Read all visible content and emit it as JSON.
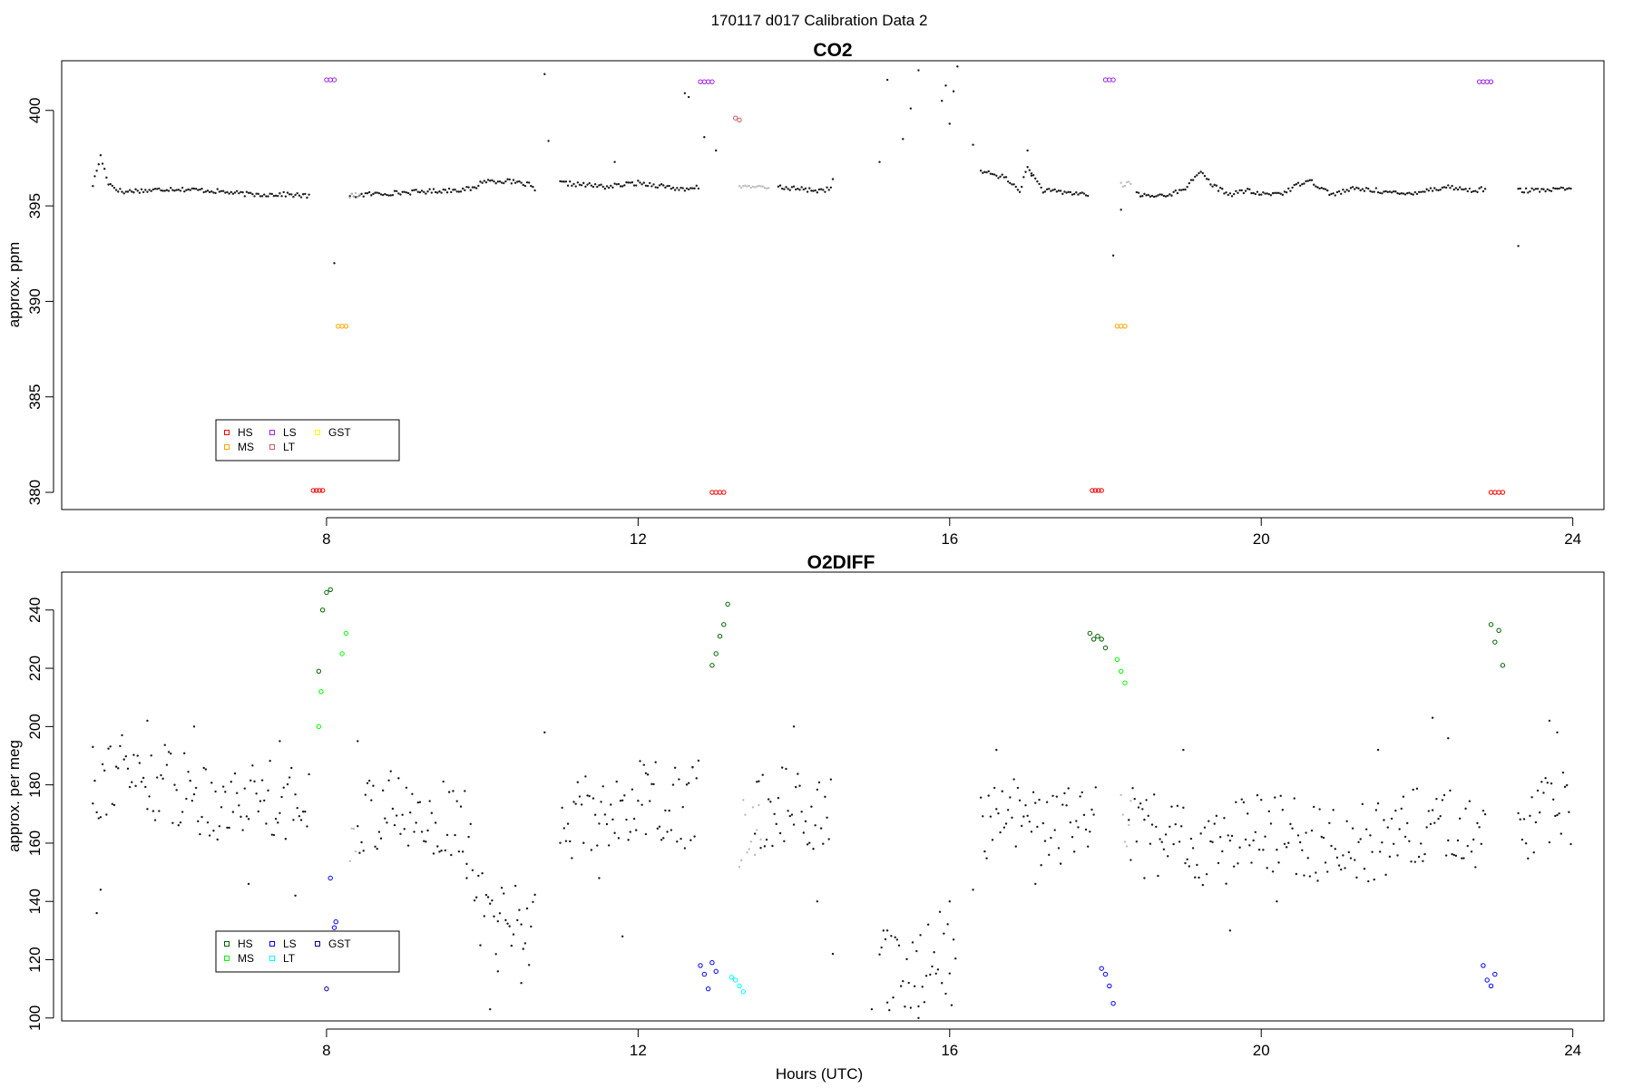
{
  "figure": {
    "suptitle": "170117   d017   Calibration Data 2"
  },
  "chart_data": [
    {
      "type": "scatter",
      "title": "CO2",
      "xlabel": "",
      "ylabel": "approx. ppm",
      "xlim": [
        4.6,
        24.4
      ],
      "ylim": [
        379.1,
        402.6
      ],
      "xticks": [
        8,
        12,
        16,
        20,
        24
      ],
      "yticks": [
        380,
        385,
        390,
        395,
        400
      ],
      "grid": false,
      "legend_position": "bottom-left",
      "legend": [
        {
          "label": "HS",
          "color": "#ff0000"
        },
        {
          "label": "MS",
          "color": "#ffa500"
        },
        {
          "label": "LS",
          "color": "#a020f0"
        },
        {
          "label": "LT",
          "color": "#cd5c5c"
        },
        {
          "label": "GST",
          "color": "#ffff00"
        }
      ],
      "baseline_segments": [
        {
          "x": [
            5.0,
            5.1,
            5.2,
            5.3,
            5.4,
            5.5,
            5.7,
            6.0,
            6.5,
            7.0,
            7.5,
            7.8
          ],
          "y": [
            396.1,
            397.6,
            396.2,
            395.9,
            395.7,
            395.8,
            395.8,
            395.9,
            395.8,
            395.6,
            395.6,
            395.5
          ]
        },
        {
          "x": [
            8.3,
            8.5,
            9.0,
            9.5,
            9.9,
            10.0,
            10.3,
            10.6,
            10.7
          ],
          "y": [
            395.5,
            395.6,
            395.7,
            395.8,
            395.9,
            396.3,
            396.3,
            396.1,
            395.7
          ]
        },
        {
          "x": [
            11.0,
            11.3,
            11.6,
            12.0,
            12.4,
            12.6,
            12.8
          ],
          "y": [
            396.2,
            396.1,
            396.0,
            396.2,
            396.0,
            395.8,
            396.0
          ]
        },
        {
          "x": [
            13.8,
            14.0,
            14.3,
            14.5
          ],
          "y": [
            396.0,
            395.9,
            395.8,
            395.9
          ]
        },
        {
          "x": [
            16.4,
            16.7,
            16.9,
            17.0,
            17.2,
            17.5,
            17.8
          ],
          "y": [
            396.8,
            396.5,
            395.8,
            397.0,
            395.8,
            395.7,
            395.6
          ]
        },
        {
          "x": [
            18.4,
            18.6,
            18.8,
            19.0,
            19.2,
            19.4,
            19.6,
            19.8,
            20.0,
            20.3,
            20.6,
            20.9,
            21.2,
            21.5,
            21.8,
            22.1,
            22.4,
            22.7,
            22.9
          ],
          "y": [
            395.6,
            395.5,
            395.6,
            395.8,
            396.8,
            396.0,
            395.6,
            395.8,
            395.6,
            395.7,
            396.4,
            395.6,
            395.9,
            395.8,
            395.6,
            395.8,
            396.0,
            395.8,
            395.9
          ]
        },
        {
          "x": [
            23.3,
            23.6,
            24.0
          ],
          "y": [
            395.8,
            395.8,
            395.9
          ]
        }
      ],
      "baseline_gray": [
        {
          "x": [
            8.3,
            8.45
          ],
          "y": [
            395.5,
            395.6
          ]
        },
        {
          "x": [
            13.3,
            13.7
          ],
          "y": [
            396.0,
            396.0
          ]
        },
        {
          "x": [
            18.2,
            18.35
          ],
          "y": [
            396.1,
            396.2
          ]
        }
      ],
      "scattered_points": {
        "x": [
          10.8,
          10.85,
          11.7,
          12.6,
          12.65,
          14.5,
          15.1,
          15.2,
          15.4,
          15.5,
          15.6,
          15.9,
          15.95,
          16.0,
          16.05,
          16.1,
          16.3,
          17.0,
          17.05,
          12.85,
          13.0,
          23.3,
          18.1,
          8.1,
          18.2
        ],
        "y": [
          401.9,
          398.4,
          397.3,
          400.9,
          400.7,
          396.4,
          397.3,
          401.6,
          398.5,
          400.1,
          402.1,
          400.5,
          401.3,
          399.3,
          401.0,
          402.3,
          398.2,
          397.9,
          396.7,
          398.6,
          397.9,
          392.9,
          392.4,
          392.0,
          394.8
        ]
      },
      "calibration_markers": [
        {
          "label": "HS",
          "color": "#ff0000",
          "x": [
            7.83,
            7.87,
            7.91,
            7.95
          ],
          "y": [
            380.1,
            380.1,
            380.1,
            380.1
          ]
        },
        {
          "label": "HS",
          "color": "#ff0000",
          "x": [
            12.95,
            13.0,
            13.05,
            13.1
          ],
          "y": [
            380.0,
            380.0,
            380.0,
            380.0
          ]
        },
        {
          "label": "HS",
          "color": "#ff0000",
          "x": [
            17.83,
            17.87,
            17.91,
            17.95
          ],
          "y": [
            380.1,
            380.1,
            380.1,
            380.1
          ]
        },
        {
          "label": "HS",
          "color": "#ff0000",
          "x": [
            22.95,
            23.0,
            23.05,
            23.1
          ],
          "y": [
            380.0,
            380.0,
            380.0,
            380.0
          ]
        },
        {
          "label": "MS",
          "color": "#ffa500",
          "x": [
            8.15,
            8.2,
            8.25
          ],
          "y": [
            388.7,
            388.7,
            388.7
          ]
        },
        {
          "label": "MS",
          "color": "#ffa500",
          "x": [
            18.15,
            18.2,
            18.25
          ],
          "y": [
            388.7,
            388.7,
            388.7
          ]
        },
        {
          "label": "LS",
          "color": "#a020f0",
          "x": [
            8.0,
            8.05,
            8.1
          ],
          "y": [
            401.6,
            401.6,
            401.6
          ]
        },
        {
          "label": "LS",
          "color": "#a020f0",
          "x": [
            12.8,
            12.85,
            12.9,
            12.95
          ],
          "y": [
            401.5,
            401.5,
            401.5,
            401.5
          ]
        },
        {
          "label": "LS",
          "color": "#a020f0",
          "x": [
            18.0,
            18.05,
            18.1
          ],
          "y": [
            401.6,
            401.6,
            401.6
          ]
        },
        {
          "label": "LS",
          "color": "#a020f0",
          "x": [
            22.8,
            22.85,
            22.9,
            22.95
          ],
          "y": [
            401.5,
            401.5,
            401.5,
            401.5
          ]
        },
        {
          "label": "LT",
          "color": "#cd5c5c",
          "x": [
            13.25,
            13.3
          ],
          "y": [
            399.6,
            399.5
          ]
        }
      ]
    },
    {
      "type": "scatter",
      "title": "O2DIFF",
      "xlabel": "Hours (UTC)",
      "ylabel": "approx. per meg",
      "xlim": [
        4.6,
        24.4
      ],
      "ylim": [
        99,
        253
      ],
      "xticks": [
        8,
        12,
        16,
        20,
        24
      ],
      "yticks": [
        100,
        120,
        140,
        160,
        180,
        200,
        220,
        240
      ],
      "grid": false,
      "legend_position": "bottom-left",
      "legend": [
        {
          "label": "HS",
          "color": "#006400"
        },
        {
          "label": "MS",
          "color": "#00ff00"
        },
        {
          "label": "LS",
          "color": "#0000ff"
        },
        {
          "label": "LT",
          "color": "#00ffff"
        },
        {
          "label": "GST",
          "color": "#00008b"
        }
      ],
      "baseline_segments": [
        {
          "x": [
            5.0,
            5.3,
            5.6,
            6.0,
            6.4,
            6.8,
            7.2,
            7.6,
            7.8
          ],
          "y": [
            180,
            186,
            182,
            180,
            176,
            174,
            178,
            172,
            178
          ]
        },
        {
          "x": [
            8.4,
            8.8,
            9.2,
            9.6,
            9.9
          ],
          "y": [
            170,
            172,
            168,
            168,
            162
          ]
        },
        {
          "x": [
            9.9,
            10.2,
            10.5,
            10.7
          ],
          "y": [
            138,
            134,
            136,
            128
          ]
        },
        {
          "x": [
            11.0,
            11.4,
            11.8,
            12.2,
            12.6,
            12.8
          ],
          "y": [
            168,
            170,
            172,
            176,
            170,
            178
          ]
        },
        {
          "x": [
            13.5,
            13.9,
            14.3,
            14.5
          ],
          "y": [
            170,
            174,
            168,
            172
          ]
        },
        {
          "x": [
            15.1,
            15.4,
            15.7,
            15.9,
            16.1
          ],
          "y": [
            118,
            112,
            120,
            124,
            114
          ]
        },
        {
          "x": [
            16.4,
            16.8,
            17.2,
            17.6,
            17.9
          ],
          "y": [
            166,
            170,
            164,
            166,
            170
          ]
        },
        {
          "x": [
            18.3,
            18.7,
            19.1,
            19.5,
            19.9,
            20.3,
            20.7,
            21.1,
            21.5,
            21.9,
            22.3,
            22.7,
            22.9
          ],
          "y": [
            166,
            162,
            160,
            158,
            166,
            162,
            160,
            162,
            160,
            164,
            168,
            164,
            170
          ]
        },
        {
          "x": [
            23.3,
            23.6,
            24.0
          ],
          "y": [
            160,
            168,
            172
          ]
        }
      ],
      "baseline_gray": [
        {
          "x": [
            8.3,
            8.4
          ],
          "y": [
            164,
            168
          ]
        },
        {
          "x": [
            13.3,
            13.6
          ],
          "y": [
            164,
            172
          ]
        },
        {
          "x": [
            18.2,
            18.35
          ],
          "y": [
            166,
            170
          ]
        }
      ],
      "scattered_points": {
        "x": [
          5.0,
          5.05,
          5.1,
          5.7,
          6.3,
          7.0,
          7.4,
          7.6,
          8.4,
          9.8,
          10.1,
          10.2,
          10.5,
          10.8,
          11.5,
          11.8,
          12.1,
          12.7,
          14.0,
          14.3,
          14.5,
          15.0,
          15.2,
          15.6,
          16.0,
          16.3,
          16.6,
          17.1,
          18.5,
          19.0,
          19.6,
          20.2,
          21.5,
          22.2,
          22.4,
          23.7,
          23.8
        ],
        "y": [
          193,
          136,
          144,
          202,
          200,
          146,
          195,
          142,
          195,
          148,
          103,
          116,
          112,
          198,
          148,
          128,
          184,
          186,
          200,
          140,
          122,
          103,
          130,
          100,
          140,
          144,
          192,
          146,
          148,
          192,
          130,
          140,
          192,
          203,
          196,
          202,
          198
        ]
      },
      "calibration_markers": [
        {
          "label": "HS",
          "color": "#006400",
          "x": [
            7.9,
            7.95,
            8.0,
            8.05
          ],
          "y": [
            219,
            240,
            246,
            247
          ]
        },
        {
          "label": "HS",
          "color": "#006400",
          "x": [
            12.95,
            13.0,
            13.05,
            13.1,
            13.15
          ],
          "y": [
            221,
            225,
            231,
            235,
            242
          ]
        },
        {
          "label": "HS",
          "color": "#006400",
          "x": [
            17.8,
            17.85,
            17.9,
            17.95,
            18.0
          ],
          "y": [
            232,
            230,
            231,
            230,
            227
          ]
        },
        {
          "label": "HS",
          "color": "#006400",
          "x": [
            22.95,
            23.0,
            23.05,
            23.1
          ],
          "y": [
            235,
            229,
            233,
            221
          ]
        },
        {
          "label": "MS",
          "color": "#00ff00",
          "x": [
            7.9,
            7.93,
            8.2,
            8.25
          ],
          "y": [
            200,
            212,
            225,
            232
          ]
        },
        {
          "label": "MS",
          "color": "#00ff00",
          "x": [
            18.15,
            18.2,
            18.25
          ],
          "y": [
            223,
            219,
            215
          ]
        },
        {
          "label": "LS",
          "color": "#0000ff",
          "x": [
            8.05,
            8.1,
            8.12
          ],
          "y": [
            148,
            131,
            133
          ]
        },
        {
          "label": "LS",
          "color": "#0000ff",
          "x": [
            12.8,
            12.85,
            12.9,
            12.95,
            13.0
          ],
          "y": [
            118,
            115,
            110,
            119,
            116
          ]
        },
        {
          "label": "LS",
          "color": "#0000ff",
          "x": [
            17.95,
            18.0,
            18.05,
            18.1
          ],
          "y": [
            117,
            115,
            111,
            105
          ]
        },
        {
          "label": "LS",
          "color": "#0000ff",
          "x": [
            22.85,
            22.9,
            22.95,
            23.0
          ],
          "y": [
            118,
            113,
            111,
            115
          ]
        },
        {
          "label": "LT",
          "color": "#00ffff",
          "x": [
            13.2,
            13.25,
            13.3,
            13.35
          ],
          "y": [
            114,
            113,
            111,
            109
          ]
        },
        {
          "label": "GST",
          "color": "#00008b",
          "x": [
            8.0
          ],
          "y": [
            110
          ]
        }
      ]
    }
  ]
}
